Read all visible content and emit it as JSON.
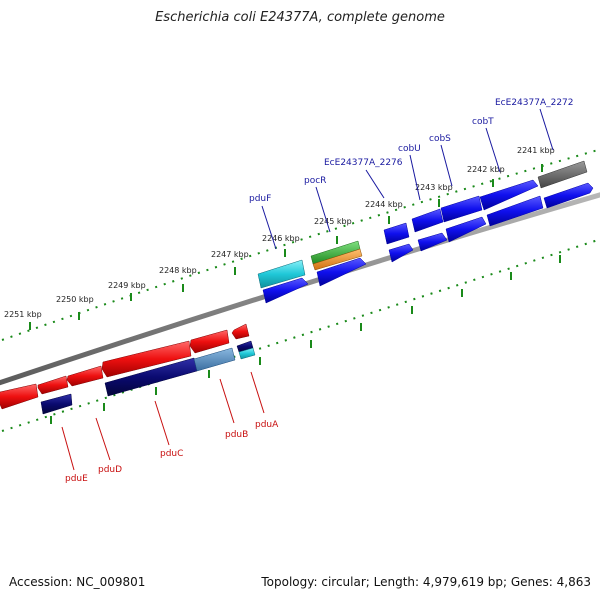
{
  "title": "Escherichia coli E24377A, complete genome",
  "footer": {
    "accession": "Accession: NC_009801",
    "summary": "Topology: circular; Length: 4,979,619 bp; Genes: 4,863"
  },
  "colors": {
    "forward_gene": "#1010ee",
    "reverse_gene": "#ee1010",
    "reverse_navy": "#0a0a70",
    "backbone": "#8a8a8a",
    "tick": "#1a8a1a",
    "forward_label": "#1a1aa0",
    "reverse_label": "#c81010",
    "cyan": "#20c8d8",
    "green": "#30b030",
    "orange": "#f09020",
    "gray_gene": "#666666",
    "steel": "#4a86b8"
  },
  "scale_labels": [
    "2241 kbp",
    "2242 kbp",
    "2243 kbp",
    "2244 kbp",
    "2245 kbp",
    "2246 kbp",
    "2247 kbp",
    "2248 kbp",
    "2249 kbp",
    "2250 kbp",
    "2251 kbp"
  ],
  "forward_gene_labels": [
    "EcE24377A_2272",
    "cobT",
    "cobS",
    "cobU",
    "EcE24377A_2276",
    "pocR",
    "pduF"
  ],
  "reverse_gene_labels": [
    "pduA",
    "pduB",
    "pduC",
    "pduD",
    "pduE"
  ]
}
